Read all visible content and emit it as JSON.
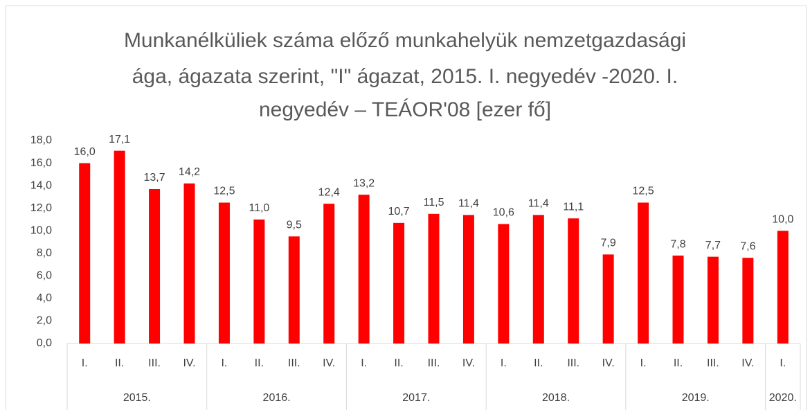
{
  "chart_data": {
    "type": "bar",
    "title_lines": [
      "Munkanélküliek száma előző munkahelyük nemzetgazdasági",
      "ága, ágazata szerint, \"I\" ágazat, 2015. I. negyedév -2020. I.",
      "negyedév – TEÁOR'08 [ezer fő]"
    ],
    "groups": [
      {
        "name": "2015.",
        "categories": [
          "I.",
          "II.",
          "III.",
          "IV."
        ]
      },
      {
        "name": "2016.",
        "categories": [
          "I.",
          "II.",
          "III.",
          "IV."
        ]
      },
      {
        "name": "2017.",
        "categories": [
          "I.",
          "II.",
          "III.",
          "IV."
        ]
      },
      {
        "name": "2018.",
        "categories": [
          "I.",
          "II.",
          "III.",
          "IV."
        ]
      },
      {
        "name": "2019.",
        "categories": [
          "I.",
          "II.",
          "III.",
          "IV."
        ]
      },
      {
        "name": "2020.",
        "categories": [
          "I."
        ]
      }
    ],
    "values": [
      16.0,
      17.1,
      13.7,
      14.2,
      12.5,
      11.0,
      9.5,
      12.4,
      13.2,
      10.7,
      11.5,
      11.4,
      10.6,
      11.4,
      11.1,
      7.9,
      12.5,
      7.8,
      7.7,
      7.6,
      10.0
    ],
    "value_labels": [
      "16,0",
      "17,1",
      "13,7",
      "14,2",
      "12,5",
      "11,0",
      "9,5",
      "12,4",
      "13,2",
      "10,7",
      "11,5",
      "11,4",
      "10,6",
      "11,4",
      "11,1",
      "7,9",
      "12,5",
      "7,8",
      "7,7",
      "7,6",
      "10,0"
    ],
    "color": "#ff0000",
    "ylim": [
      0,
      18
    ],
    "yticks": [
      {
        "value": 0,
        "label": "0,0"
      },
      {
        "value": 2,
        "label": "2,0"
      },
      {
        "value": 4,
        "label": "4,0"
      },
      {
        "value": 6,
        "label": "6,0"
      },
      {
        "value": 8,
        "label": "8,0"
      },
      {
        "value": 10,
        "label": "10,0"
      },
      {
        "value": 12,
        "label": "12,0"
      },
      {
        "value": 14,
        "label": "14,0"
      },
      {
        "value": 16,
        "label": "16,0"
      },
      {
        "value": 18,
        "label": "18,0"
      }
    ],
    "grid": false
  }
}
